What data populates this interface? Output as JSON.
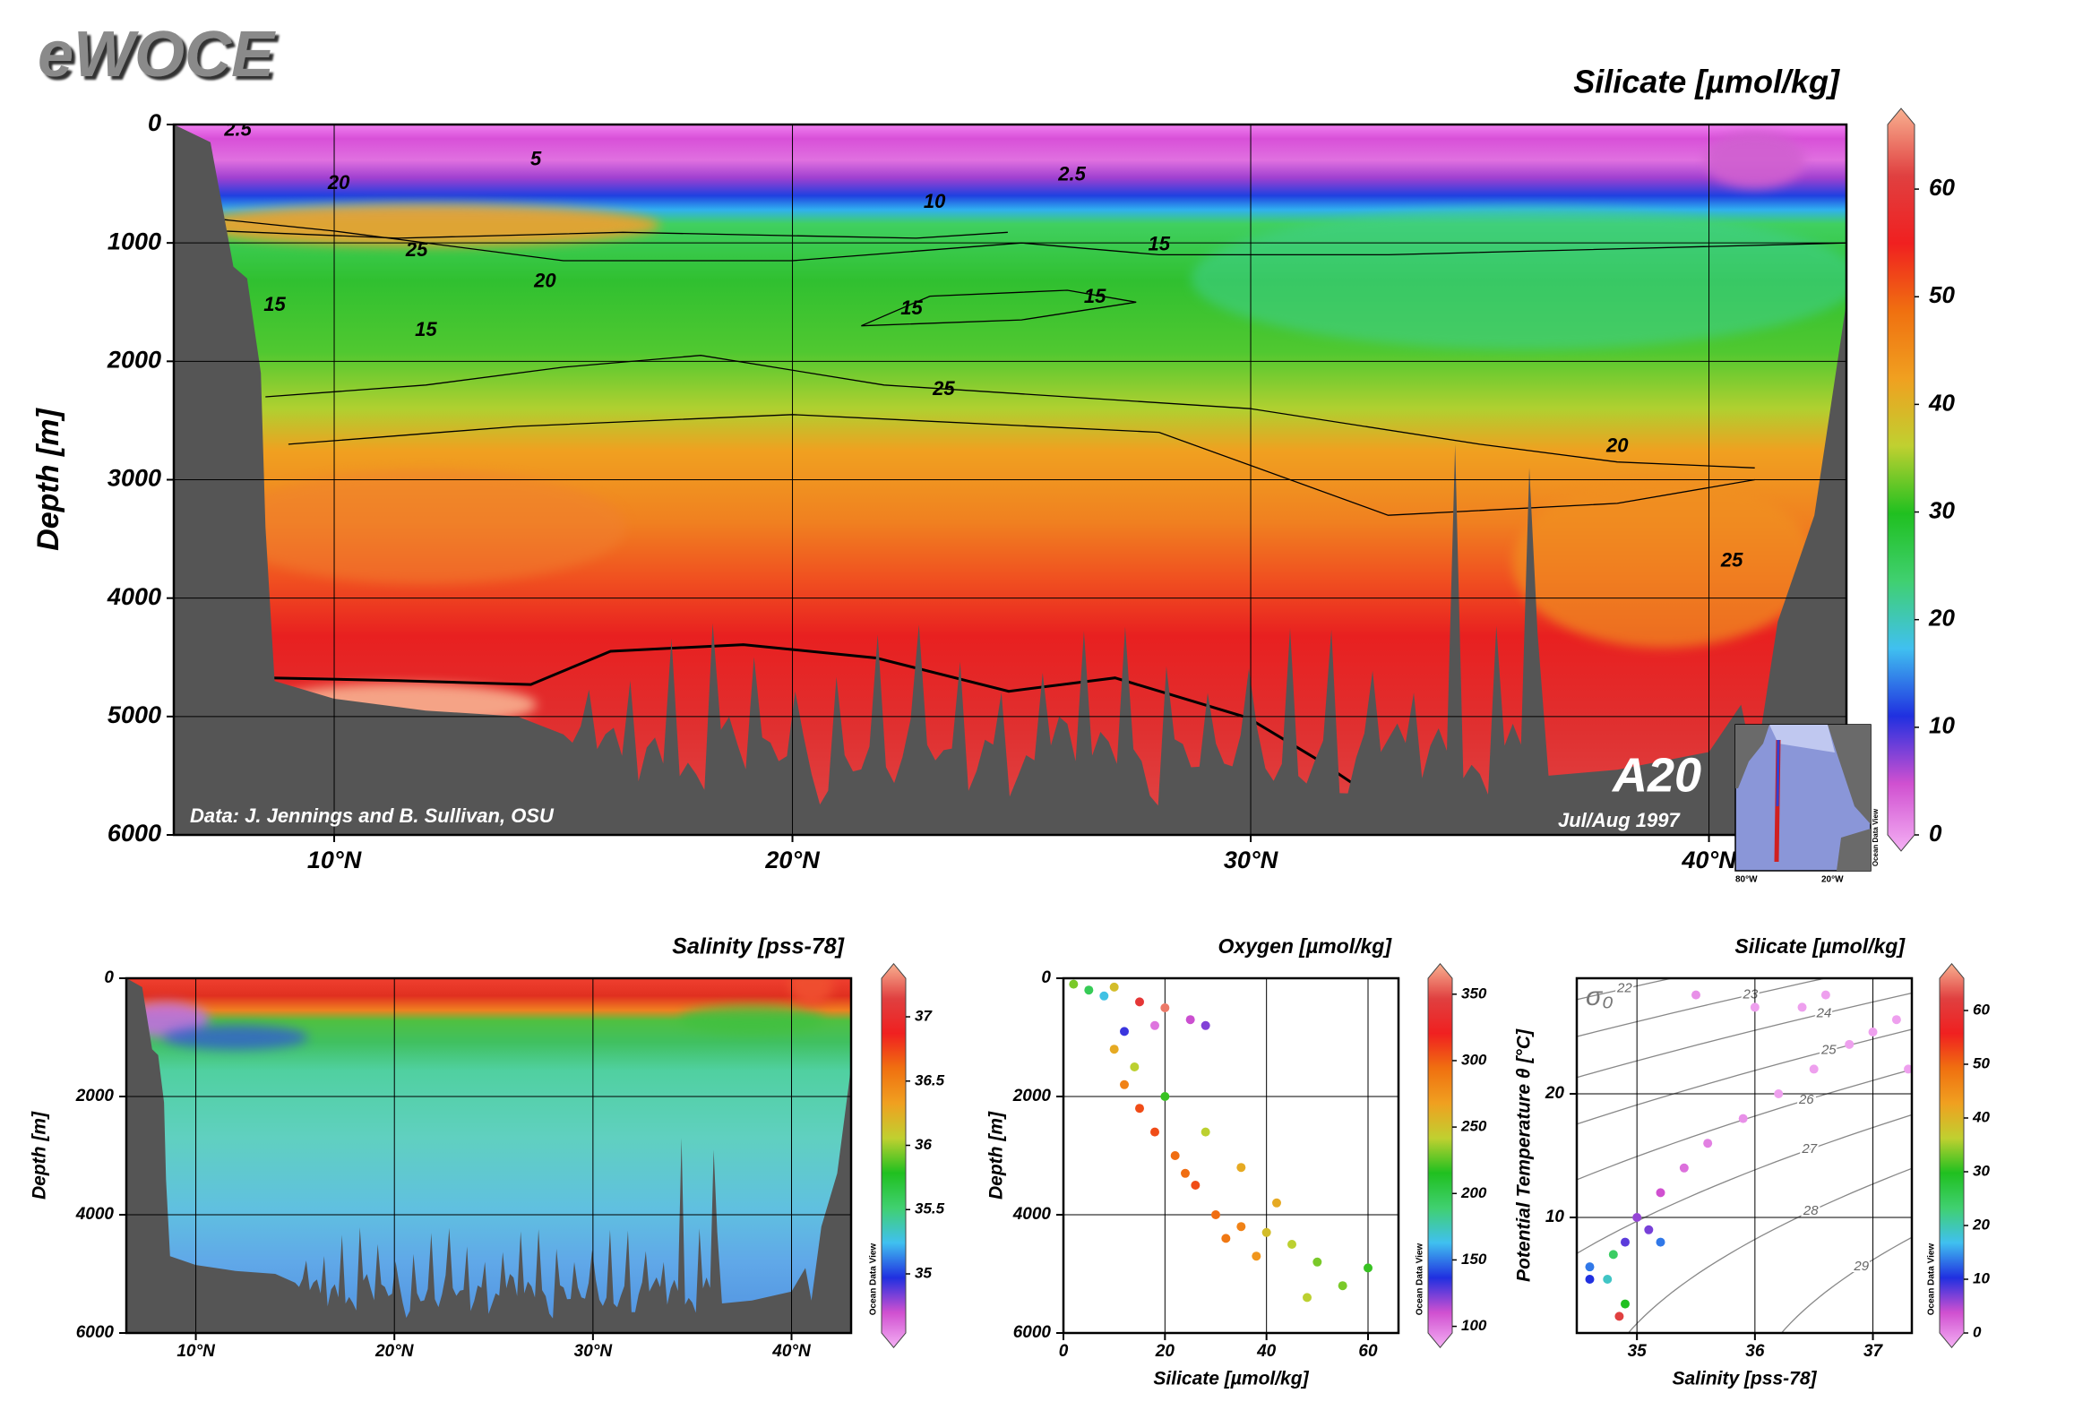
{
  "logo": "eWOCE",
  "chart_data": [
    {
      "type": "section",
      "title": "Silicate [µmol/kg]",
      "ylabel": "Depth [m]",
      "xlim": [
        6.5,
        43
      ],
      "xticks": [
        {
          "value": 10,
          "label": "10°N"
        },
        {
          "value": 20,
          "label": "20°N"
        },
        {
          "value": 30,
          "label": "30°N"
        },
        {
          "value": 40,
          "label": "40°N"
        }
      ],
      "ylim": [
        0,
        6000
      ],
      "yticks": [
        0,
        1000,
        2000,
        3000,
        4000,
        5000,
        6000
      ],
      "yreversed": true,
      "grid": true,
      "colorbar": {
        "ylim": [
          0,
          66
        ],
        "yticks": [
          0,
          10,
          20,
          30,
          40,
          50,
          60
        ],
        "colors": [
          "#f4b0f4",
          "#d050d0",
          "#2030e0",
          "#40c0f0",
          "#40d070",
          "#20c020",
          "#c0d030",
          "#f0a020",
          "#f07010",
          "#f02020",
          "#e04040",
          "#f8b090"
        ]
      },
      "contour_labels": [
        {
          "value": 2.5,
          "lat": 7.9,
          "depth": 50
        },
        {
          "value": 5,
          "lat": 14.4,
          "depth": 300
        },
        {
          "value": 10,
          "lat": 23.1,
          "depth": 660
        },
        {
          "value": 2.5,
          "lat": 26.1,
          "depth": 430
        },
        {
          "value": 20,
          "lat": 10.1,
          "depth": 500
        },
        {
          "value": 25,
          "lat": 11.8,
          "depth": 1070
        },
        {
          "value": 20,
          "lat": 14.6,
          "depth": 1330
        },
        {
          "value": 15,
          "lat": 8.7,
          "depth": 1530
        },
        {
          "value": 15,
          "lat": 12.0,
          "depth": 1740
        },
        {
          "value": 15,
          "lat": 22.6,
          "depth": 1560
        },
        {
          "value": 15,
          "lat": 26.6,
          "depth": 1460
        },
        {
          "value": 15,
          "lat": 28.0,
          "depth": 1020
        },
        {
          "value": 25,
          "lat": 23.3,
          "depth": 2240
        },
        {
          "value": 20,
          "lat": 38.0,
          "depth": 2720
        },
        {
          "value": 25,
          "lat": 40.5,
          "depth": 3690
        }
      ],
      "credit": "Data: J. Jennings and B. Sullivan, OSU",
      "cruise": "A20",
      "date": "Jul/Aug 1997",
      "inset_xticks": [
        "80°W",
        "20°W"
      ],
      "watermark": "Ocean Data View"
    },
    {
      "type": "section",
      "title": "Salinity [pss-78]",
      "ylabel": "Depth [m]",
      "xlim": [
        6.5,
        43
      ],
      "xticks": [
        {
          "value": 10,
          "label": "10°N"
        },
        {
          "value": 20,
          "label": "20°N"
        },
        {
          "value": 30,
          "label": "30°N"
        },
        {
          "value": 40,
          "label": "40°N"
        }
      ],
      "ylim": [
        0,
        6000
      ],
      "yticks": [
        0,
        2000,
        4000,
        6000
      ],
      "yreversed": true,
      "grid": true,
      "colorbar": {
        "ylim": [
          34.54,
          37.3
        ],
        "yticks": [
          35,
          35.5,
          36,
          36.5,
          37
        ],
        "colors": [
          "#f4b0f4",
          "#d050d0",
          "#2030e0",
          "#40c0f0",
          "#40d070",
          "#20c020",
          "#c0d030",
          "#f0a020",
          "#f07010",
          "#f02020",
          "#e04040",
          "#f8b090"
        ]
      },
      "watermark": "Ocean Data View"
    },
    {
      "type": "scatter",
      "title": "Oxygen [µmol/kg]",
      "xlabel": "Silicate [µmol/kg]",
      "ylabel": "Depth [m]",
      "xlim": [
        0,
        66
      ],
      "xticks": [
        0,
        20,
        40,
        60
      ],
      "ylim": [
        0,
        6000
      ],
      "yticks": [
        0,
        2000,
        4000,
        6000
      ],
      "yreversed": true,
      "grid": true,
      "colorbar": {
        "ylim": [
          95,
          362
        ],
        "yticks": [
          100,
          150,
          200,
          250,
          300,
          350
        ],
        "colors": [
          "#f4b0f4",
          "#d050d0",
          "#2030e0",
          "#40c0f0",
          "#40d070",
          "#20c020",
          "#c0d030",
          "#f0a020",
          "#f07010",
          "#f02020",
          "#e04040",
          "#f8b090"
        ]
      },
      "points": {
        "x": [
          2,
          5,
          8,
          10,
          15,
          20,
          25,
          28,
          12,
          18,
          10,
          14,
          12,
          15,
          18,
          22,
          26,
          30,
          35,
          40,
          45,
          50,
          55,
          48,
          42,
          35,
          28,
          20,
          60,
          24,
          32,
          38
        ],
        "y": [
          100,
          200,
          300,
          150,
          400,
          500,
          700,
          800,
          900,
          800,
          1200,
          1500,
          1800,
          2200,
          2600,
          3000,
          3500,
          4000,
          4200,
          4300,
          4500,
          4800,
          5200,
          5400,
          3800,
          3200,
          2600,
          2000,
          4900,
          3300,
          4400,
          4700
        ],
        "c": [
          230,
          200,
          170,
          250,
          330,
          350,
          120,
          130,
          140,
          110,
          260,
          240,
          280,
          300,
          300,
          290,
          300,
          290,
          280,
          250,
          240,
          230,
          230,
          240,
          260,
          260,
          240,
          220,
          220,
          290,
          285,
          270
        ]
      },
      "watermark": "Ocean Data View"
    },
    {
      "type": "scatter",
      "title": "Silicate [µmol/kg]",
      "xlabel": "Salinity [pss-78]",
      "ylabel": "Potential Temperature θ [°C]",
      "xlim": [
        34.49,
        37.33
      ],
      "xticks": [
        35,
        36,
        37
      ],
      "ylim": [
        0.65,
        29.35
      ],
      "yticks": [
        10,
        20
      ],
      "grid": true,
      "colorbar": {
        "ylim": [
          0,
          66
        ],
        "yticks": [
          0,
          10,
          20,
          30,
          40,
          50,
          60
        ],
        "colors": [
          "#f4b0f4",
          "#d050d0",
          "#2030e0",
          "#40c0f0",
          "#40d070",
          "#20c020",
          "#c0d030",
          "#f0a020",
          "#f07010",
          "#f02020",
          "#e04040",
          "#f8b090"
        ]
      },
      "isopycnal_symbol": "σ₀",
      "isopycnals": [
        22,
        23,
        24,
        25,
        26,
        27,
        28,
        29
      ],
      "points": {
        "x": [
          34.85,
          34.9,
          34.75,
          34.6,
          34.9,
          35.0,
          35.2,
          35.4,
          35.6,
          35.9,
          36.2,
          36.5,
          36.8,
          37.0,
          37.2,
          36.0,
          35.5,
          36.6,
          37.3,
          35.2,
          34.8,
          34.6,
          35.1,
          36.4
        ],
        "y": [
          2,
          3,
          5,
          6,
          8,
          10,
          12,
          14,
          16,
          18,
          20,
          22,
          24,
          25,
          26,
          27,
          28,
          28,
          22,
          8,
          7,
          5,
          9,
          27
        ],
        "c": [
          60,
          30,
          20,
          15,
          10,
          8,
          6,
          4,
          3,
          2,
          1,
          1,
          1,
          1,
          1,
          1,
          2,
          1,
          1,
          15,
          25,
          12,
          9,
          1
        ]
      },
      "watermark": "Ocean Data View"
    }
  ]
}
